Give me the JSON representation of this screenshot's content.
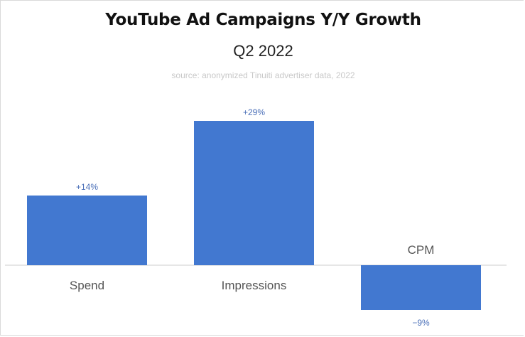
{
  "title": "YouTube Ad Campaigns Y/Y Growth",
  "subtitle": "Q2 2022",
  "source": "source: anonymized Tinuiti advertiser data, 2022",
  "colors": {
    "bar": "#4278d0",
    "value_label": "#4a6fb8",
    "category_label": "#555555",
    "baseline": "#cccccc"
  },
  "chart_data": {
    "type": "bar",
    "categories": [
      "Spend",
      "Impressions",
      "CPM"
    ],
    "values": [
      14,
      29,
      -9
    ],
    "value_labels": [
      "+14%",
      "+29%",
      "−9%"
    ],
    "ylabel": "",
    "xlabel": "",
    "unit": "%",
    "grid": false,
    "legend": "none"
  }
}
